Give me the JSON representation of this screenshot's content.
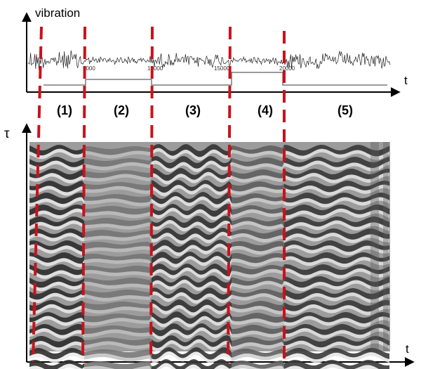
{
  "top_plot": {
    "y_label": "vibration",
    "x_label": "t",
    "tick_labels": [
      "5000",
      "10000",
      "15000",
      "20000"
    ]
  },
  "bottom_plot": {
    "y_label": "τ",
    "x_label": "t"
  },
  "segments": [
    "(1)",
    "(2)",
    "(3)",
    "(4)",
    "(5)"
  ],
  "colors": {
    "divider": "#c8121b",
    "signal": "#222222",
    "state_line": "#7a7a7a",
    "axis": "#000000"
  }
}
